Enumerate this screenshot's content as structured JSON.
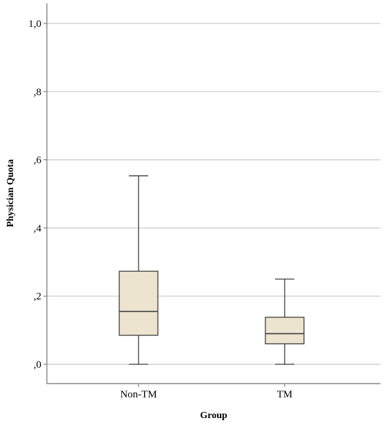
{
  "chart_data": {
    "type": "boxplot",
    "xlabel": "Group",
    "ylabel": "Physician Quota",
    "ylim": [
      0,
      1.05
    ],
    "yticks": [
      {
        "value": 0.0,
        "label": ",0"
      },
      {
        "value": 0.2,
        "label": ",2"
      },
      {
        "value": 0.4,
        "label": ",4"
      },
      {
        "value": 0.6,
        "label": ",6"
      },
      {
        "value": 0.8,
        "label": ",8"
      },
      {
        "value": 1.0,
        "label": "1,0"
      }
    ],
    "grid": true,
    "categories": [
      "Non-TM",
      "TM"
    ],
    "boxes": [
      {
        "category": "Non-TM",
        "min": 0.0,
        "q1": 0.085,
        "median": 0.155,
        "q3": 0.273,
        "max": 0.553
      },
      {
        "category": "TM",
        "min": 0.0,
        "q1": 0.06,
        "median": 0.09,
        "q3": 0.138,
        "max": 0.25
      }
    ],
    "colors": {
      "box_fill": "#EDE4CF",
      "stroke": "#3C3C3C",
      "grid": "#C8C8C8",
      "axis": "#6E6E6E"
    }
  }
}
